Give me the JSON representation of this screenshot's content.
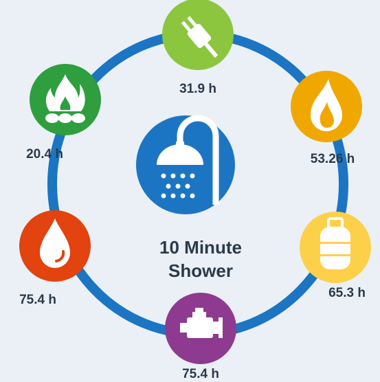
{
  "title_lines": [
    "10 Minute",
    "Shower"
  ],
  "nodes": [
    {
      "label": "31.9 h"
    },
    {
      "label": "53.26 h"
    },
    {
      "label": "65.3 h"
    },
    {
      "label": "75.4 h"
    },
    {
      "label": "75.4 h"
    },
    {
      "label": "20.4 h"
    }
  ]
}
